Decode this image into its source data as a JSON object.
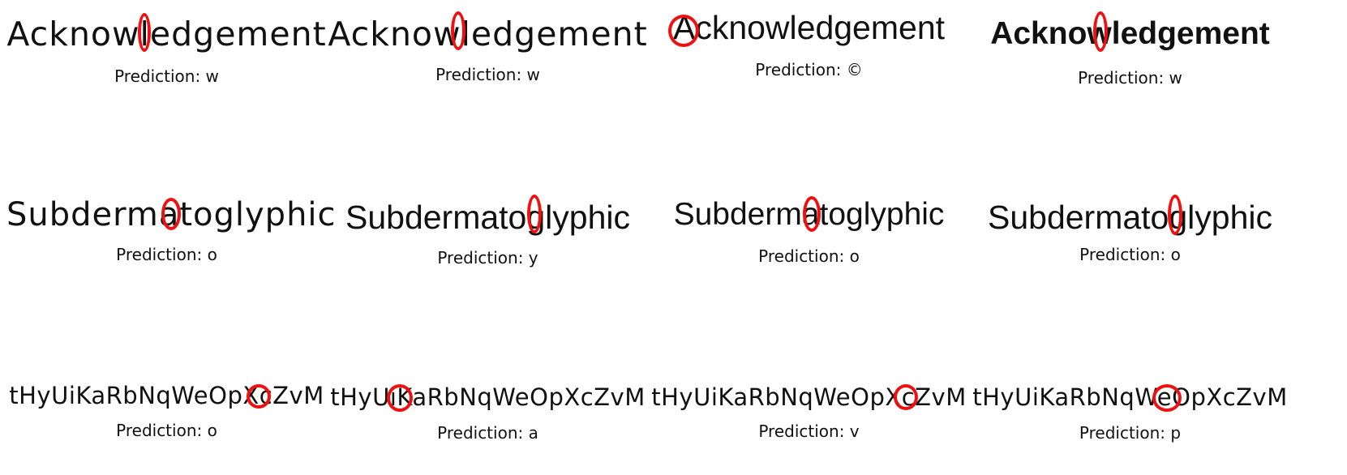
{
  "prediction_prefix": "Prediction: ",
  "panels": [
    {
      "word": "Acknowledgement",
      "prediction": "w"
    },
    {
      "word": "Acknowledgement",
      "prediction": "w"
    },
    {
      "word": "Acknowledgement",
      "prediction": "©"
    },
    {
      "word": "Acknowledgement",
      "prediction": "w"
    },
    {
      "word": "Subdermatoglyphic",
      "prediction": "o"
    },
    {
      "word": "Subdermatoglyphic",
      "prediction": "y"
    },
    {
      "word": "Subdermatoglyphic",
      "prediction": "o"
    },
    {
      "word": "Subdermatoglyphic",
      "prediction": "o"
    },
    {
      "word": "tHyUiKaRbNqWeOpXcZvM",
      "prediction": "o"
    },
    {
      "word": "tHyUiKaRbNqWeOpXcZvM",
      "prediction": "a"
    },
    {
      "word": "tHyUiKaRbNqWeOpXcZvM",
      "prediction": "v"
    },
    {
      "word": "tHyUiKaRbNqWeOpXcZvM",
      "prediction": "p"
    }
  ],
  "marker_color": "#ee1111"
}
